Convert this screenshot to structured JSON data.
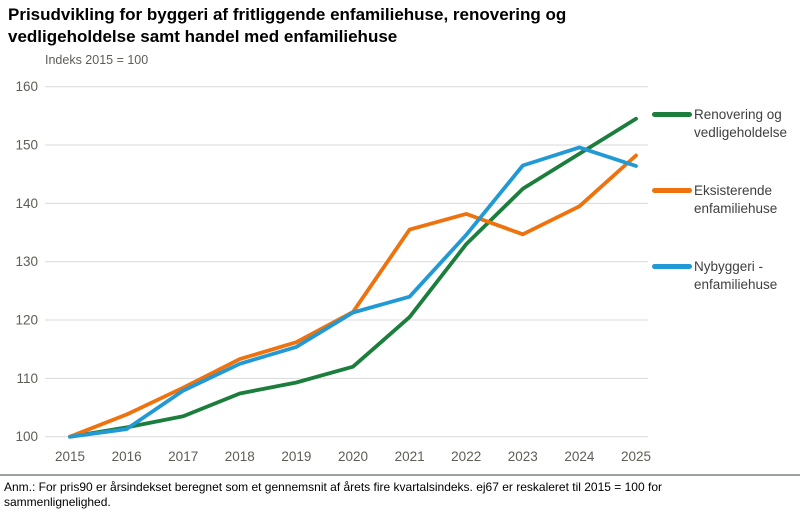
{
  "header": {
    "title": "Prisudvikling for byggeri af fritliggende enfamiliehuse, renovering og vedligeholdelse samt handel med enfamiliehuse",
    "subtitle": "Indeks 2015 = 100"
  },
  "chart_data": {
    "type": "line",
    "x": [
      2015,
      2016,
      2017,
      2018,
      2019,
      2020,
      2021,
      2022,
      2023,
      2024,
      2025
    ],
    "series": [
      {
        "name": "Renovering og vedligeholdelse",
        "color": "#1B7E3C",
        "values": [
          100,
          101.6,
          103.5,
          107.4,
          109.3,
          112.0,
          120.5,
          133.0,
          142.5,
          148.5,
          154.5
        ]
      },
      {
        "name": "Eksisterende enfamiliehuse",
        "color": "#EE720D",
        "values": [
          100,
          103.8,
          108.4,
          113.3,
          116.2,
          121.4,
          135.5,
          138.2,
          134.7,
          139.5,
          148.2
        ]
      },
      {
        "name": "Nybyggeri - enfamiliehuse",
        "color": "#2199D4",
        "values": [
          100,
          101.3,
          107.9,
          112.5,
          115.4,
          121.3,
          124.0,
          134.6,
          146.5,
          149.6,
          146.4
        ]
      }
    ],
    "title": "Prisudvikling for byggeri af fritliggende enfamiliehuse, renovering og vedligeholdelse samt handel med enfamiliehuse",
    "subtitle_ylabel": "Indeks 2015 = 100",
    "xlabel": "",
    "ylim": [
      100,
      160
    ],
    "ytick_step": 10,
    "ytick_labels": [
      "100",
      "110",
      "120",
      "130",
      "140",
      "150",
      "160"
    ],
    "xtick_labels": [
      "2015",
      "2016",
      "2017",
      "2018",
      "2019",
      "2020",
      "2021",
      "2022",
      "2023",
      "2024",
      "2025"
    ],
    "grid": "horizontal-on",
    "legend_position": "right"
  },
  "footer": {
    "note": "Anm.: For pris90 er årsindekset beregnet som et gennemsnit af årets fire kvartalsindeks. ej67 er reskaleret til 2015 = 100 for sammenlignelighed."
  }
}
